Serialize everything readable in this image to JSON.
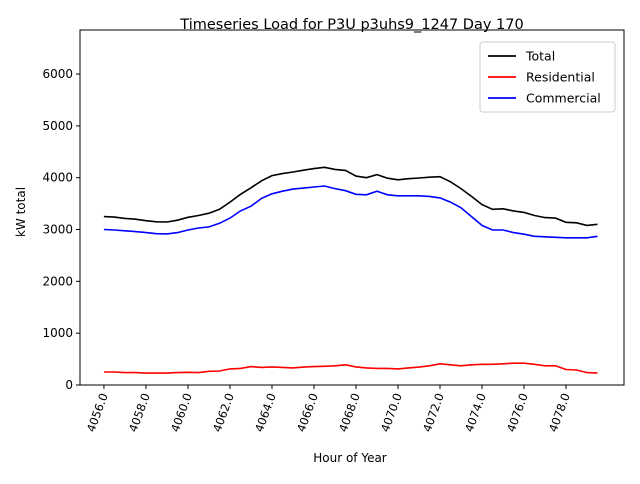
{
  "chart_data": {
    "type": "line",
    "title": "Timeseries Load for P3U p3uhs9_1247  Day 170",
    "xlabel": "Hour of Year",
    "ylabel": "kW total",
    "xlim": [
      4054.86,
      4080.76
    ],
    "ylim": [
      0,
      6850
    ],
    "xticks": [
      4056,
      4058,
      4060,
      4062,
      4064,
      4066,
      4068,
      4070,
      4072,
      4074,
      4076,
      4078
    ],
    "xtick_labels": [
      "4056.0",
      "4058.0",
      "4060.0",
      "4062.0",
      "4064.0",
      "4066.0",
      "4068.0",
      "4070.0",
      "4072.0",
      "4074.0",
      "4076.0",
      "4078.0"
    ],
    "yticks": [
      0,
      1000,
      2000,
      3000,
      4000,
      5000,
      6000
    ],
    "ytick_labels": [
      "0",
      "1000",
      "2000",
      "3000",
      "4000",
      "5000",
      "6000"
    ],
    "grid": false,
    "legend_position": "top-right",
    "x_start": 4056,
    "x_step": 0.5,
    "series": [
      {
        "name": "Total",
        "color": "#000000",
        "values": [
          3250,
          3240,
          3215,
          3200,
          3170,
          3150,
          3145,
          3180,
          3235,
          3270,
          3315,
          3390,
          3530,
          3680,
          3805,
          3940,
          4040,
          4080,
          4110,
          4145,
          4175,
          4200,
          4160,
          4140,
          4030,
          4000,
          4060,
          3990,
          3960,
          3980,
          3995,
          4010,
          4020,
          3920,
          3790,
          3640,
          3480,
          3390,
          3400,
          3360,
          3330,
          3270,
          3230,
          3220,
          3140,
          3130,
          3080,
          3100
        ]
      },
      {
        "name": "Residential",
        "color": "#ff0000",
        "values": [
          250,
          250,
          240,
          240,
          230,
          230,
          230,
          240,
          245,
          240,
          265,
          270,
          310,
          320,
          355,
          340,
          350,
          340,
          330,
          345,
          355,
          360,
          370,
          390,
          350,
          330,
          320,
          320,
          310,
          330,
          345,
          370,
          410,
          390,
          370,
          390,
          400,
          400,
          410,
          420,
          420,
          400,
          370,
          370,
          300,
          290,
          240,
          230
        ]
      },
      {
        "name": "Commercial",
        "color": "#0000ff",
        "values": [
          3000,
          2990,
          2975,
          2960,
          2940,
          2920,
          2915,
          2940,
          2990,
          3030,
          3050,
          3120,
          3220,
          3360,
          3450,
          3600,
          3690,
          3740,
          3780,
          3800,
          3820,
          3840,
          3790,
          3750,
          3680,
          3670,
          3740,
          3670,
          3650,
          3650,
          3650,
          3640,
          3610,
          3530,
          3420,
          3250,
          3080,
          2990,
          2990,
          2940,
          2910,
          2870,
          2860,
          2850,
          2840,
          2840,
          2840,
          2870
        ]
      }
    ]
  }
}
